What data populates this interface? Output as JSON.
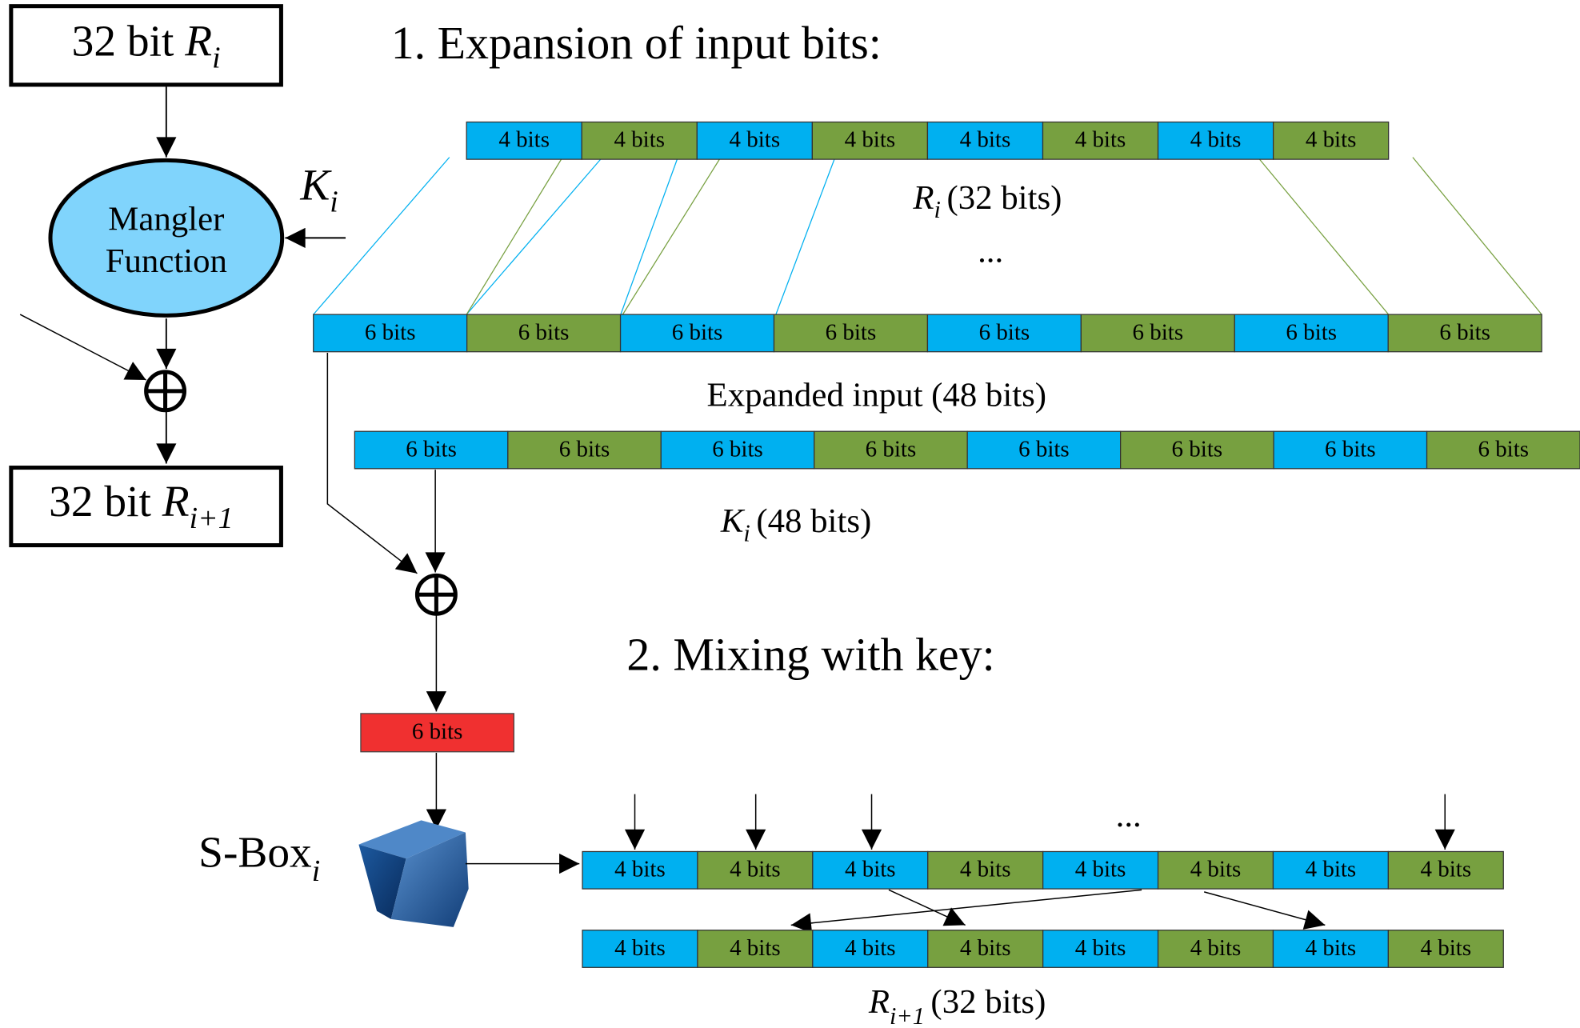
{
  "left": {
    "input": {
      "text": "32 bit",
      "var": "R",
      "sub": "i"
    },
    "mangler": [
      "Mangler",
      "Function"
    ],
    "key": {
      "var": "K",
      "sub": "i"
    },
    "output": {
      "text": "32 bit",
      "var": "R",
      "sub": "i+1"
    }
  },
  "section1": "1. Expansion of input bits:",
  "r_row": {
    "cells": [
      "4 bits",
      "4 bits",
      "4 bits",
      "4 bits",
      "4 bits",
      "4 bits",
      "4 bits",
      "4 bits"
    ],
    "caption": {
      "var": "R",
      "sub": "i",
      "text": "(32 bits)"
    }
  },
  "ellipsis1": "...",
  "expanded_row": {
    "cells": [
      "6 bits",
      "6 bits",
      "6 bits",
      "6 bits",
      "6 bits",
      "6 bits",
      "6 bits",
      "6 bits"
    ],
    "caption": "Expanded input (48 bits)"
  },
  "key_row": {
    "cells": [
      "6 bits",
      "6 bits",
      "6 bits",
      "6 bits",
      "6 bits",
      "6 bits",
      "6 bits",
      "6 bits"
    ],
    "caption": {
      "var": "K",
      "sub": "i",
      "text": "(48 bits)"
    }
  },
  "section2": "2. Mixing with key:",
  "sbox_input": "6 bits",
  "sbox_label": {
    "text": "S-Box",
    "sub": "i"
  },
  "ellipsis2": "...",
  "sbox_row": {
    "cells": [
      "4 bits",
      "4 bits",
      "4 bits",
      "4 bits",
      "4 bits",
      "4 bits",
      "4 bits",
      "4 bits"
    ]
  },
  "output_row": {
    "cells": [
      "4 bits",
      "4 bits",
      "4 bits",
      "4 bits",
      "4 bits",
      "4 bits",
      "4 bits",
      "4 bits"
    ],
    "caption": {
      "var": "R",
      "sub": "i+1",
      "text": "(32 bits)"
    }
  }
}
